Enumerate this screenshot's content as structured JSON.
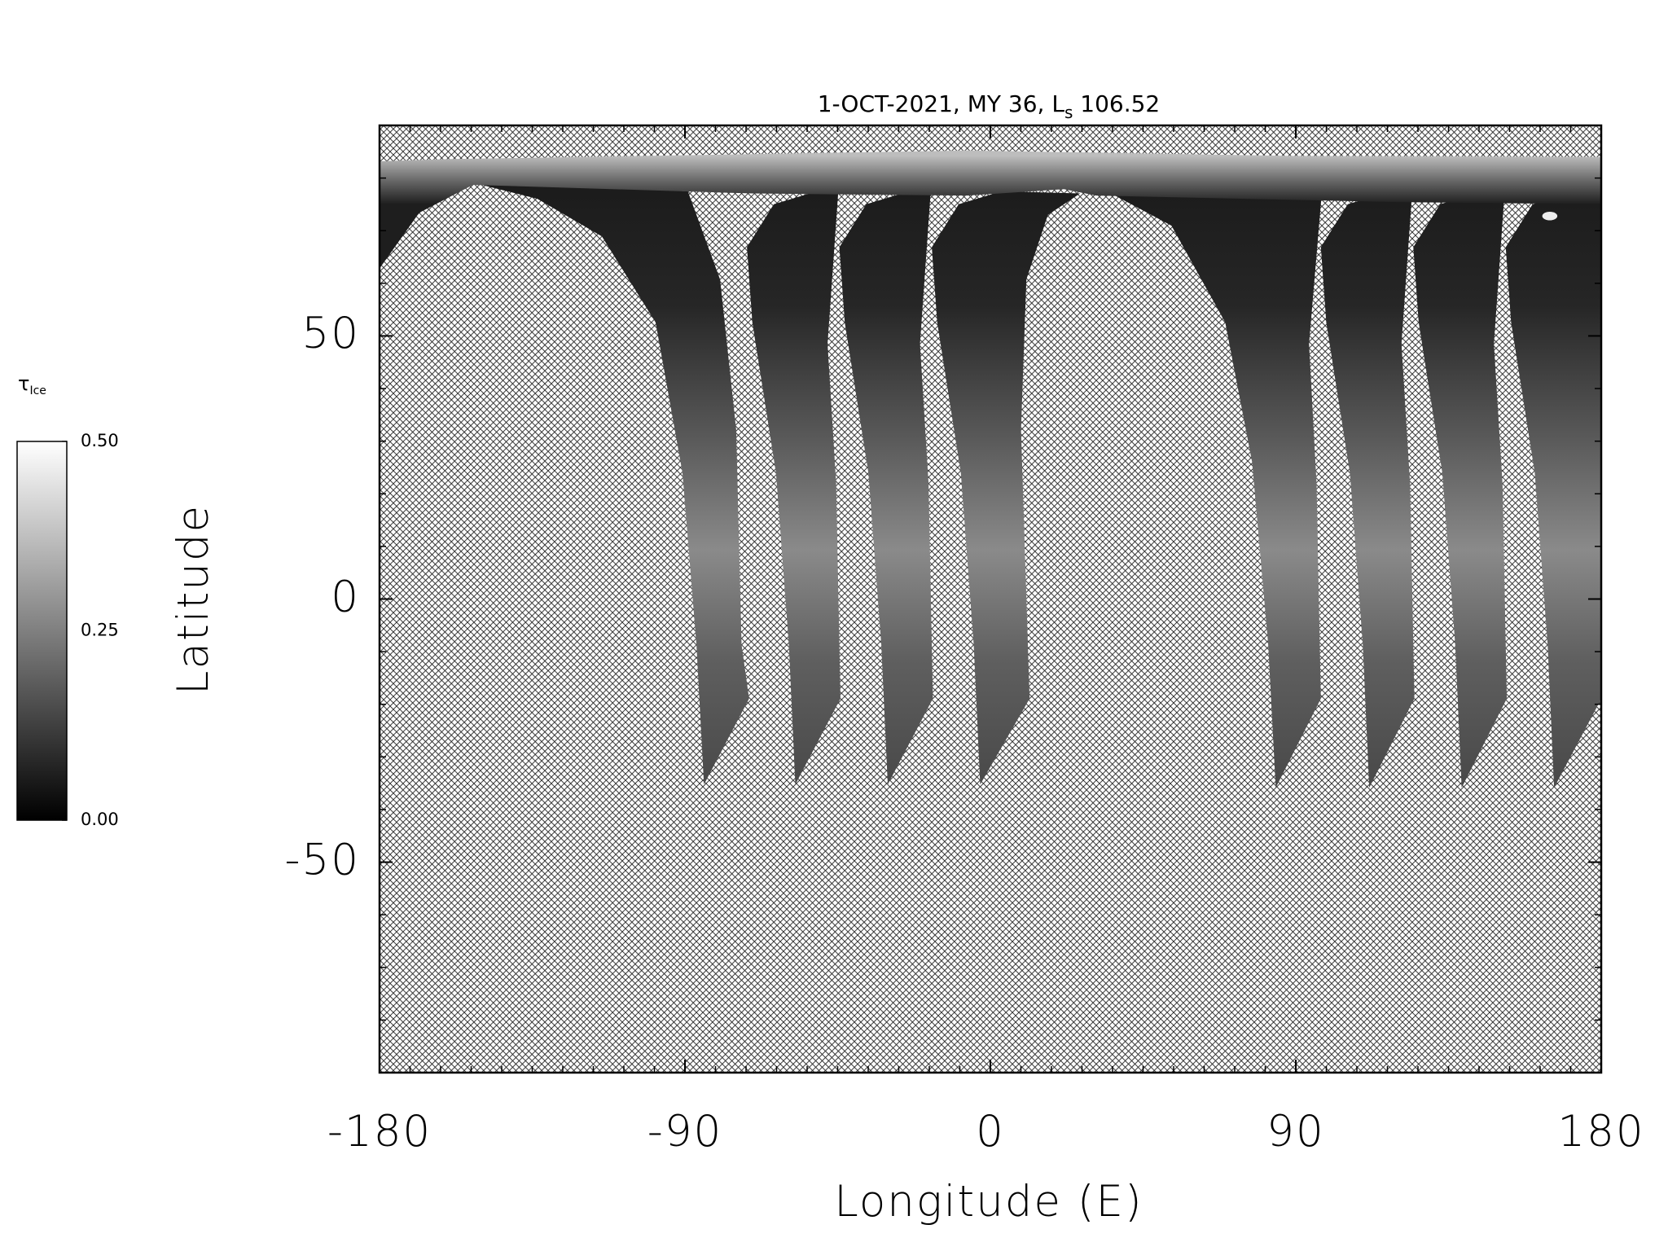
{
  "chart_data": {
    "type": "map",
    "title": "1-OCT-2021, MY 36,",
    "title_symbol": "L",
    "title_symbol_sub": "s",
    "title_value": 106.52,
    "x_label": "Longitude (E)",
    "y_label": "Latitude",
    "xlim": [
      -180,
      180
    ],
    "xticks": [
      -180,
      -90,
      0,
      90,
      180
    ],
    "x_minor_per_major": 10,
    "ylim": [
      -90,
      90
    ],
    "yticks": [
      -50,
      0,
      50
    ],
    "y_minor_per_major": 5,
    "colorbar": {
      "label": "τ",
      "label_sub": "Ice",
      "clim": [
        0,
        0.5
      ],
      "ticks": [
        {
          "value": 0,
          "label": "0.00"
        },
        {
          "value": 0.25,
          "label": "0.25"
        },
        {
          "value": 0.5,
          "label": "0.50"
        }
      ]
    }
  }
}
